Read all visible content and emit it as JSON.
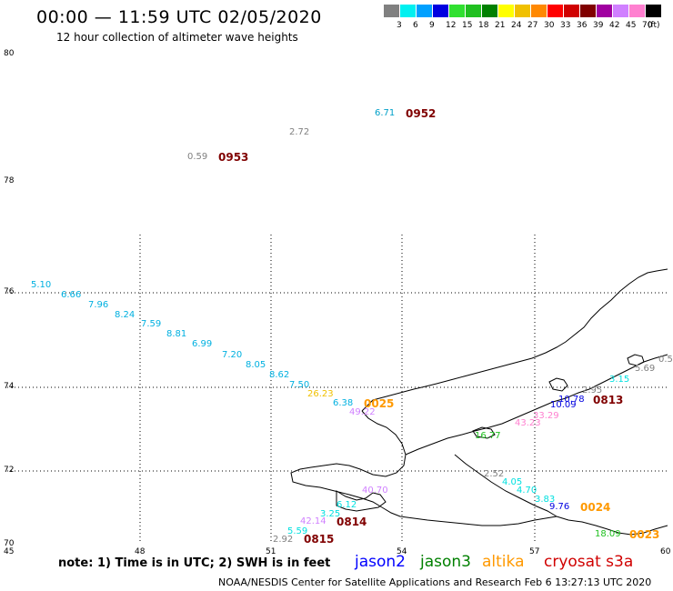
{
  "header": {
    "title": "00:00 — 11:59 UTC 02/05/2020",
    "subtitle": "12 hour collection of altimeter wave heights"
  },
  "legend": {
    "unit": "(ft)",
    "colors": [
      "#808080",
      "#00f0f0",
      "#00a0ff",
      "#0000e0",
      "#30e030",
      "#20c020",
      "#008000",
      "#ffff00",
      "#f0c000",
      "#ff8800",
      "#ff0000",
      "#d00000",
      "#800000",
      "#a000a0",
      "#d080ff",
      "#ff80d0",
      "#000000"
    ],
    "labels": [
      "3",
      "6",
      "9",
      "12",
      "15",
      "18",
      "21",
      "24",
      "27",
      "30",
      "33",
      "36",
      "39",
      "42",
      "45",
      "70"
    ]
  },
  "axes": {
    "lat_labels": [
      "80",
      "78",
      "76",
      "74",
      "72",
      "70"
    ],
    "lon_labels": [
      "45",
      "48",
      "51",
      "54",
      "57",
      "60"
    ]
  },
  "observations": [
    {
      "text": "6.71",
      "color": "#00a0c8"
    },
    {
      "text": "0952",
      "color": "#800000",
      "kind": "time"
    },
    {
      "text": "2.72",
      "color": "#808080"
    },
    {
      "text": "0.59",
      "color": "#808080"
    },
    {
      "text": "0953",
      "color": "#800000",
      "kind": "time"
    },
    {
      "text": "5.10",
      "color": "#00b0e0"
    },
    {
      "text": "6.66",
      "color": "#00b0e0"
    },
    {
      "text": "7.96",
      "color": "#00b0e0"
    },
    {
      "text": "8.24",
      "color": "#00b0e0"
    },
    {
      "text": "7.59",
      "color": "#00b0e0"
    },
    {
      "text": "8.81",
      "color": "#00b0e0"
    },
    {
      "text": "6.99",
      "color": "#00b0e0"
    },
    {
      "text": "7.20",
      "color": "#00b0e0"
    },
    {
      "text": "8.05",
      "color": "#00b0e0"
    },
    {
      "text": "8.62",
      "color": "#00b0e0"
    },
    {
      "text": "7.50",
      "color": "#00b0e0"
    },
    {
      "text": "26.23",
      "color": "#f0c000"
    },
    {
      "text": "6.38",
      "color": "#00b0e0"
    },
    {
      "text": "0025",
      "color": "#ff9900",
      "kind": "time"
    },
    {
      "text": "49.22",
      "color": "#d080ff"
    },
    {
      "text": "0.5",
      "color": "#808080"
    },
    {
      "text": "5.69",
      "color": "#808080"
    },
    {
      "text": "3.15",
      "color": "#00e0e0"
    },
    {
      "text": "2.95",
      "color": "#808080"
    },
    {
      "text": "10.78",
      "color": "#0000e0"
    },
    {
      "text": "0813",
      "color": "#800000",
      "kind": "time"
    },
    {
      "text": "10.09",
      "color": "#0000e0"
    },
    {
      "text": "43.23",
      "color": "#ff80d0"
    },
    {
      "text": "33.29",
      "color": "#ff80d0"
    },
    {
      "text": "16.77",
      "color": "#20c020"
    },
    {
      "text": "2.52",
      "color": "#808080"
    },
    {
      "text": "4.05",
      "color": "#00e0e0"
    },
    {
      "text": "4.70",
      "color": "#00e0e0"
    },
    {
      "text": "3.83",
      "color": "#00e0e0"
    },
    {
      "text": "9.76",
      "color": "#0000e0"
    },
    {
      "text": "0024",
      "color": "#ff9900",
      "kind": "time"
    },
    {
      "text": "18.09",
      "color": "#20c020"
    },
    {
      "text": "0023",
      "color": "#ff9900",
      "kind": "time"
    },
    {
      "text": "40.70",
      "color": "#d080ff"
    },
    {
      "text": "6.12",
      "color": "#00e0e0"
    },
    {
      "text": "3.25",
      "color": "#00e0e0"
    },
    {
      "text": "42.14",
      "color": "#d080ff"
    },
    {
      "text": "0814",
      "color": "#800000",
      "kind": "time"
    },
    {
      "text": "5.59",
      "color": "#00e0e0"
    },
    {
      "text": "2.92",
      "color": "#808080"
    },
    {
      "text": "0815",
      "color": "#800000",
      "kind": "time"
    }
  ],
  "footer": {
    "note": "note: 1) Time is in UTC; 2) SWH is in feet",
    "satellites": [
      {
        "name": "jason2",
        "color": "#0000ff"
      },
      {
        "name": "jason3",
        "color": "#008000"
      },
      {
        "name": "altika",
        "color": "#ff9900"
      },
      {
        "name": "cryosat s3a",
        "color": "#d00000"
      }
    ],
    "credit": "NOAA/NESDIS Center for Satellite Applications and Research    Feb  6 13:27:13 UTC 2020"
  }
}
